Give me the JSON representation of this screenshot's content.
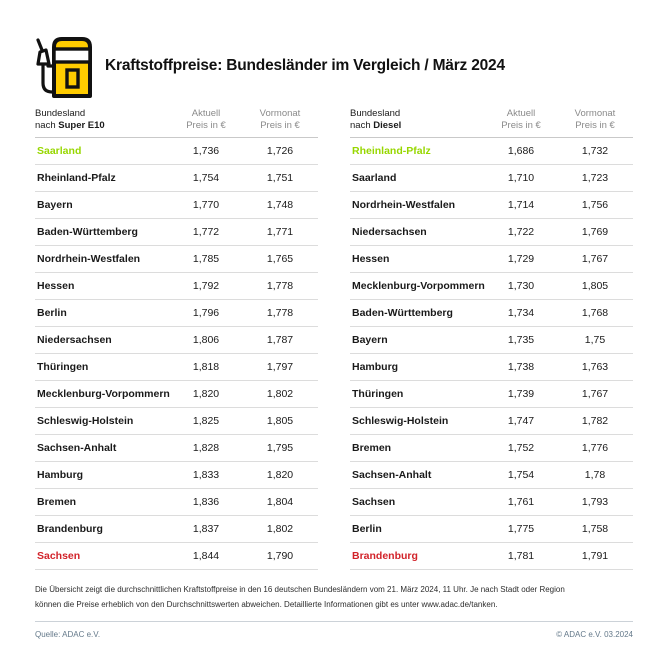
{
  "header": {
    "icon": "fuel-pump-icon",
    "title": "Kraftstoffpreise: Bundesländer im Vergleich / März 2024"
  },
  "colors": {
    "accent_yellow": "#FFCC00",
    "best_green": "#97D700",
    "worst_red": "#D2232A",
    "header_gray": "#8A8A8A",
    "divider": "#DCDCDC",
    "footer_slate": "#64798A",
    "text": "#1A1A1A"
  },
  "chart_data": [
    {
      "type": "table",
      "title_line1": "Bundesland",
      "title_prefix": "nach ",
      "title_fuel": "Super E10",
      "col2_line1": "Aktuell",
      "col2_line2": "Preis in €",
      "col3_line1": "Vormonat",
      "col3_line2": "Preis in €",
      "rows": [
        {
          "state": "Saarland",
          "aktuell": "1,736",
          "vormonat": "1,726",
          "highlight": "best"
        },
        {
          "state": "Rheinland-Pfalz",
          "aktuell": "1,754",
          "vormonat": "1,751",
          "highlight": ""
        },
        {
          "state": "Bayern",
          "aktuell": "1,770",
          "vormonat": "1,748",
          "highlight": ""
        },
        {
          "state": "Baden-Württemberg",
          "aktuell": "1,772",
          "vormonat": "1,771",
          "highlight": ""
        },
        {
          "state": "Nordrhein-Westfalen",
          "aktuell": "1,785",
          "vormonat": "1,765",
          "highlight": ""
        },
        {
          "state": "Hessen",
          "aktuell": "1,792",
          "vormonat": "1,778",
          "highlight": ""
        },
        {
          "state": "Berlin",
          "aktuell": "1,796",
          "vormonat": "1,778",
          "highlight": ""
        },
        {
          "state": "Niedersachsen",
          "aktuell": "1,806",
          "vormonat": "1,787",
          "highlight": ""
        },
        {
          "state": "Thüringen",
          "aktuell": "1,818",
          "vormonat": "1,797",
          "highlight": ""
        },
        {
          "state": "Mecklenburg-Vorpommern",
          "aktuell": "1,820",
          "vormonat": "1,802",
          "highlight": ""
        },
        {
          "state": "Schleswig-Holstein",
          "aktuell": "1,825",
          "vormonat": "1,805",
          "highlight": ""
        },
        {
          "state": "Sachsen-Anhalt",
          "aktuell": "1,828",
          "vormonat": "1,795",
          "highlight": ""
        },
        {
          "state": "Hamburg",
          "aktuell": "1,833",
          "vormonat": "1,820",
          "highlight": ""
        },
        {
          "state": "Bremen",
          "aktuell": "1,836",
          "vormonat": "1,804",
          "highlight": ""
        },
        {
          "state": "Brandenburg",
          "aktuell": "1,837",
          "vormonat": "1,802",
          "highlight": ""
        },
        {
          "state": "Sachsen",
          "aktuell": "1,844",
          "vormonat": "1,790",
          "highlight": "worst"
        }
      ]
    },
    {
      "type": "table",
      "title_line1": "Bundesland",
      "title_prefix": "nach ",
      "title_fuel": "Diesel",
      "col2_line1": "Aktuell",
      "col2_line2": "Preis in €",
      "col3_line1": "Vormonat",
      "col3_line2": "Preis in €",
      "rows": [
        {
          "state": "Rheinland-Pfalz",
          "aktuell": "1,686",
          "vormonat": "1,732",
          "highlight": "best"
        },
        {
          "state": "Saarland",
          "aktuell": "1,710",
          "vormonat": "1,723",
          "highlight": ""
        },
        {
          "state": "Nordrhein-Westfalen",
          "aktuell": "1,714",
          "vormonat": "1,756",
          "highlight": ""
        },
        {
          "state": "Niedersachsen",
          "aktuell": "1,722",
          "vormonat": "1,769",
          "highlight": ""
        },
        {
          "state": "Hessen",
          "aktuell": "1,729",
          "vormonat": "1,767",
          "highlight": ""
        },
        {
          "state": "Mecklenburg-Vorpommern",
          "aktuell": "1,730",
          "vormonat": "1,805",
          "highlight": ""
        },
        {
          "state": "Baden-Württemberg",
          "aktuell": "1,734",
          "vormonat": "1,768",
          "highlight": ""
        },
        {
          "state": "Bayern",
          "aktuell": "1,735",
          "vormonat": "1,75",
          "highlight": ""
        },
        {
          "state": "Hamburg",
          "aktuell": "1,738",
          "vormonat": "1,763",
          "highlight": ""
        },
        {
          "state": "Thüringen",
          "aktuell": "1,739",
          "vormonat": "1,767",
          "highlight": ""
        },
        {
          "state": "Schleswig-Holstein",
          "aktuell": "1,747",
          "vormonat": "1,782",
          "highlight": ""
        },
        {
          "state": "Bremen",
          "aktuell": "1,752",
          "vormonat": "1,776",
          "highlight": ""
        },
        {
          "state": "Sachsen-Anhalt",
          "aktuell": "1,754",
          "vormonat": "1,78",
          "highlight": ""
        },
        {
          "state": "Sachsen",
          "aktuell": "1,761",
          "vormonat": "1,793",
          "highlight": ""
        },
        {
          "state": "Berlin",
          "aktuell": "1,775",
          "vormonat": "1,758",
          "highlight": ""
        },
        {
          "state": "Brandenburg",
          "aktuell": "1,781",
          "vormonat": "1,791",
          "highlight": "worst"
        }
      ]
    }
  ],
  "footnote": "Die Übersicht zeigt die durchschnittlichen Kraftstoffpreise in den 16 deutschen Bundesländern vom 21. März 2024, 11 Uhr. Je nach Stadt oder Region können die Preise erheblich von den Durchschnittswerten abweichen. Detaillierte Informationen gibt es unter www.adac.de/tanken.",
  "footer": {
    "source": "Quelle: ADAC e.V.",
    "copyright": "© ADAC e.V. 03.2024"
  }
}
